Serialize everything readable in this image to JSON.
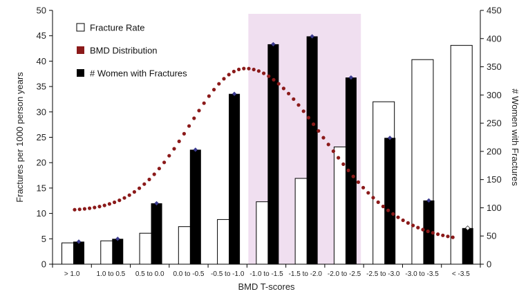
{
  "chart_data": {
    "type": "bar",
    "xlabel": "BMD T-scores",
    "ylabel_left": "Fractures per 1000 person years",
    "ylabel_right": "# Women with Fractures",
    "ylim_left": [
      0,
      50
    ],
    "ylim_right": [
      0,
      450
    ],
    "yticks_left": [
      "0",
      "5",
      "10",
      "15",
      "20",
      "25",
      "30",
      "35",
      "40",
      "45",
      "50"
    ],
    "yticks_right": [
      "0",
      "50",
      "100",
      "150",
      "200",
      "250",
      "300",
      "350",
      "400",
      "450"
    ],
    "categories": [
      "> 1.0",
      "1.0 to 0.5",
      "0.5 to 0.0",
      "0.0 to -0.5",
      "-0.5 to -1.0",
      "-1.0 to -1.5",
      "-1.5 to -2.0",
      "-2.0 to -2.5",
      "-2.5 to -3.0",
      "-3.0 to -3.5",
      "< -3.5"
    ],
    "highlight_categories": [
      "-1.0 to -1.5",
      "-1.5 to -2.0",
      "-2.0 to -2.5"
    ],
    "highlight_color": "#f0dff0",
    "series": [
      {
        "name": "Fracture Rate",
        "axis": "left",
        "style": "open-bar",
        "values": [
          4.2,
          4.6,
          6.1,
          7.4,
          8.8,
          12.3,
          16.9,
          23.1,
          32.0,
          40.3,
          43.1
        ]
      },
      {
        "name": "# Women with Fractures",
        "axis": "right",
        "style": "filled-bar",
        "values": [
          40,
          45,
          108,
          203,
          302,
          390,
          404,
          331,
          224,
          113,
          64
        ]
      },
      {
        "name": "BMD Distribution",
        "axis": "none",
        "style": "dotted-curve",
        "color": "#8b1a1a"
      }
    ],
    "marker_color": "#3b3b8f"
  },
  "legend": {
    "items": [
      {
        "label": "Fracture Rate",
        "swatch": "open"
      },
      {
        "label": "BMD Distribution",
        "swatch": "dark-red"
      },
      {
        "label": "# Women with Fractures",
        "swatch": "black"
      }
    ]
  }
}
